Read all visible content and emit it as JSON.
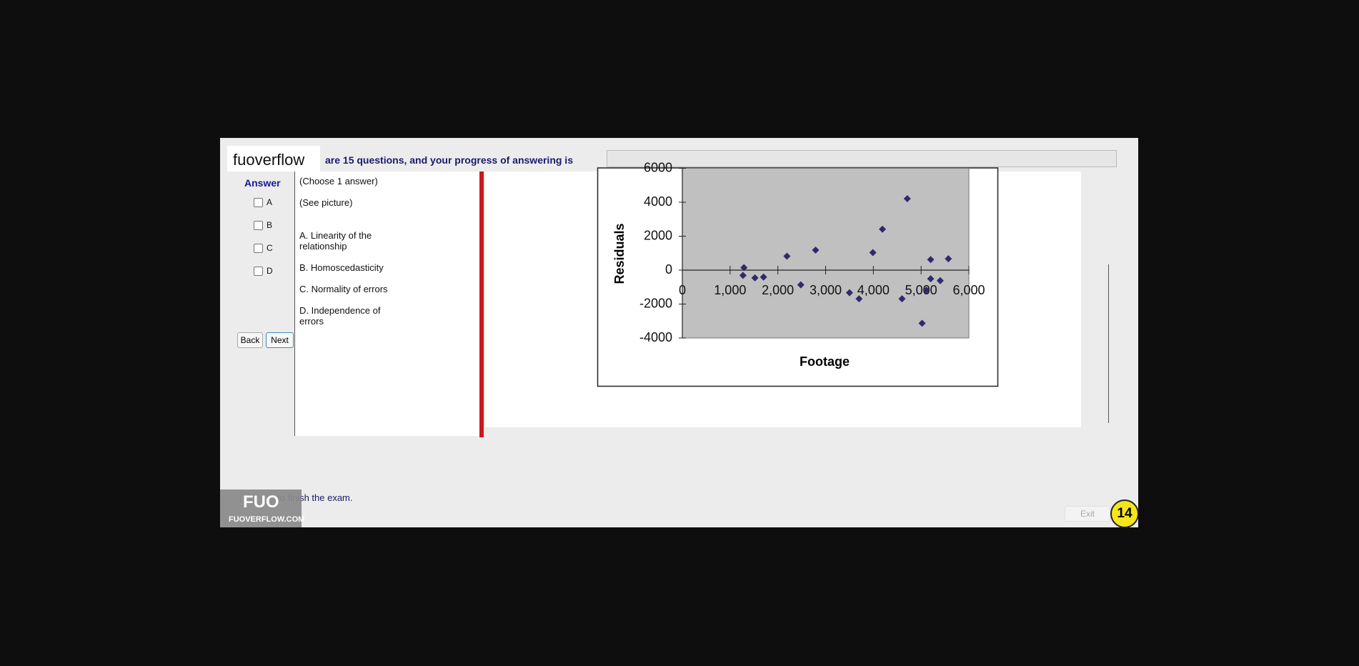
{
  "header": {
    "logo": "fuoverflow",
    "progress_text": "are 15 questions, and your progress of answering is"
  },
  "answer_panel": {
    "title": "Answer",
    "options": [
      "A",
      "B",
      "C",
      "D"
    ],
    "back": "Back",
    "next": "Next"
  },
  "question": {
    "instruction": "(Choose 1 answer)",
    "prompt": "(See picture)",
    "choices": [
      "A.  Linearity of the relationship",
      "B.  Homoscedasticity",
      "C.  Normality of errors",
      "D.  Independence of errors"
    ]
  },
  "chart_data": {
    "type": "scatter",
    "x_label": "Footage",
    "y_label": "Residuals",
    "color": "#2e2a6b",
    "x": [
      1290,
      1270,
      1520,
      1700,
      2190,
      2480,
      2790,
      3500,
      3700,
      3990,
      4190,
      4600,
      4710,
      5020,
      5200,
      5200,
      5110,
      5400,
      5570
    ],
    "values": [
      150,
      -310,
      -460,
      -410,
      820,
      -870,
      1180,
      -1330,
      -1690,
      1030,
      2410,
      -1690,
      4210,
      -3130,
      620,
      -510,
      -1180,
      -620,
      670
    ],
    "xlim": [
      0,
      6000
    ],
    "xticks": [
      0,
      {
        "value": 1000,
        "label": "1,000"
      },
      {
        "value": 2000,
        "label": "2,000"
      },
      {
        "value": 3000,
        "label": "3,000"
      },
      {
        "value": 4000,
        "label": "4,000"
      },
      {
        "value": 5000,
        "label": "5,000"
      },
      {
        "value": 6000,
        "label": "6,000"
      }
    ],
    "ylim": [
      -4000,
      6000
    ],
    "yticks": [
      -4000,
      -2000,
      0,
      2000,
      4000,
      6000
    ]
  },
  "footer": {
    "finish_text": "to finish the exam.",
    "logo": "FUO",
    "logo_site": "FUOVERFLOW.COM",
    "exit": "Exit",
    "badge": "14"
  }
}
